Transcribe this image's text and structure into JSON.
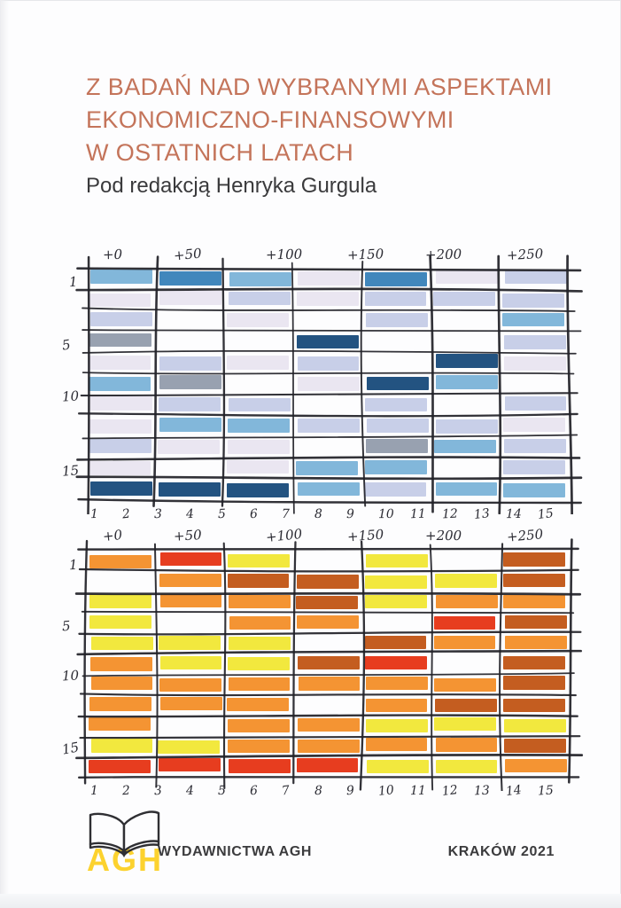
{
  "cover": {
    "title_line1": "Z BADAŃ NAD WYBRANYMI ASPEKTAMI",
    "title_line2": "EKONOMICZNO-FINANSOWYMI",
    "title_line3": "W OSTATNICH LATACH",
    "editor": "Pod redakcją Henryka Gurgula",
    "title_color": "#c4745a"
  },
  "footer": {
    "publisher": "WYDAWNICTWA AGH",
    "city_year": "KRAKÓW 2021",
    "logo_text": "AGH",
    "logo_yellow": "#fcd22e"
  },
  "chart_data": [
    {
      "type": "heatmap",
      "style": "hand-drawn sketch grid, blue palette",
      "top_axis_labels": [
        "+0",
        "+50",
        "+100",
        "+150",
        "+200",
        "+250"
      ],
      "left_axis_labels": [
        "1",
        "5",
        "10",
        "15"
      ],
      "bottom_axis_labels": [
        "1",
        "2",
        "3",
        "4",
        "5",
        "6",
        "7",
        "8",
        "9",
        "10",
        "11",
        "12",
        "13",
        "14",
        "15"
      ],
      "rows": 11,
      "cols": 7,
      "palette": {
        "LB": "#82b7da",
        "MB": "#4187bc",
        "NV": "#235381",
        "PW": "#c8cfe8",
        "LV": "#eae6f1",
        "GY": "#98a1b0"
      },
      "cells": [
        [
          "LB",
          "MB",
          "LB",
          "LV",
          "MB",
          "LV",
          "PW"
        ],
        [
          "LV",
          "LV",
          "PW",
          "LV",
          "PW",
          "PW",
          "PW"
        ],
        [
          "PW",
          "",
          "LV",
          "",
          "PW",
          "",
          "LB"
        ],
        [
          "GY",
          "",
          "",
          "NV",
          "",
          "",
          "PW"
        ],
        [
          "LV",
          "PW",
          "LV",
          "PW",
          "",
          "NV",
          "LV"
        ],
        [
          "LB",
          "GY",
          "",
          "LV",
          "NV",
          "LB",
          ""
        ],
        [
          "LV",
          "PW",
          "PW",
          "",
          "PW",
          "",
          "PW"
        ],
        [
          "LV",
          "LB",
          "LB",
          "PW",
          "PW",
          "PW",
          "LV"
        ],
        [
          "PW",
          "LV",
          "LV",
          "",
          "GY",
          "LB",
          "PW"
        ],
        [
          "LV",
          "",
          "LV",
          "LB",
          "LB",
          "",
          "PW"
        ],
        [
          "NV",
          "NV",
          "NV",
          "LB",
          "PW",
          "LB",
          "LB"
        ]
      ]
    },
    {
      "type": "heatmap",
      "style": "hand-drawn sketch grid, warm palette",
      "top_axis_labels": [
        "+0",
        "+50",
        "+100",
        "+150",
        "+200",
        "+250"
      ],
      "left_axis_labels": [
        "1",
        "5",
        "10",
        "15"
      ],
      "bottom_axis_labels": [
        "1",
        "2",
        "3",
        "4",
        "5",
        "6",
        "7",
        "8",
        "9",
        "10",
        "11",
        "12",
        "13",
        "14",
        "15"
      ],
      "rows": 11,
      "cols": 7,
      "palette": {
        "OR": "#f49433",
        "RU": "#c45d20",
        "RD": "#e73d1f",
        "YL": "#f2e83e"
      },
      "cells": [
        [
          "OR",
          "RD",
          "YL",
          "",
          "YL",
          "",
          "RU"
        ],
        [
          "",
          "OR",
          "RU",
          "RU",
          "YL",
          "YL",
          "RU"
        ],
        [
          "YL",
          "OR",
          "OR",
          "RU",
          "YL",
          "OR",
          "OR"
        ],
        [
          "YL",
          "",
          "OR",
          "OR",
          "",
          "RD",
          "RU"
        ],
        [
          "YL",
          "YL",
          "YL",
          "",
          "RU",
          "OR",
          "OR"
        ],
        [
          "OR",
          "YL",
          "YL",
          "RU",
          "RD",
          "",
          "RU"
        ],
        [
          "OR",
          "OR",
          "OR",
          "OR",
          "OR",
          "OR",
          "RU"
        ],
        [
          "OR",
          "OR",
          "OR",
          "",
          "OR",
          "RU",
          "RU"
        ],
        [
          "OR",
          "",
          "OR",
          "OR",
          "YL",
          "YL",
          "YL"
        ],
        [
          "YL",
          "YL",
          "OR",
          "OR",
          "OR",
          "OR",
          "RU"
        ],
        [
          "RD",
          "RD",
          "RD",
          "RD",
          "YL",
          "YL",
          "OR"
        ]
      ]
    }
  ]
}
